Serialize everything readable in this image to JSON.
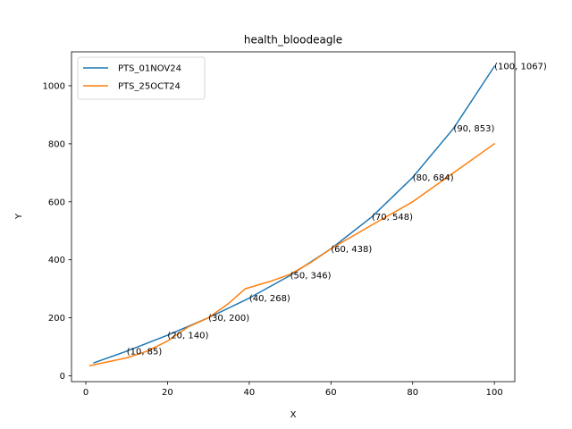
{
  "chart_data": {
    "type": "line",
    "title": "health_bloodeagle",
    "xlabel": "X",
    "ylabel": "Y",
    "xlim": [
      -3.5,
      105
    ],
    "ylim": [
      -20,
      1117
    ],
    "xticks": [
      0,
      20,
      40,
      60,
      80,
      100
    ],
    "yticks": [
      0,
      200,
      400,
      600,
      800,
      1000
    ],
    "grid": false,
    "legend_position": "top-left",
    "series": [
      {
        "name": "PTS_01NOV24",
        "color": "#1f77b4",
        "x": [
          2,
          10,
          20,
          30,
          40,
          50,
          60,
          70,
          80,
          90,
          100
        ],
        "y": [
          45,
          85,
          140,
          200,
          268,
          346,
          438,
          548,
          684,
          853,
          1067
        ]
      },
      {
        "name": "PTS_25OCT24",
        "color": "#ff7f0e",
        "x": [
          1,
          10,
          15,
          20,
          25,
          30,
          35,
          39,
          45,
          50,
          55,
          60,
          70,
          80,
          90,
          100
        ],
        "y": [
          35,
          62,
          85,
          120,
          168,
          200,
          250,
          300,
          325,
          350,
          390,
          438,
          520,
          600,
          700,
          800
        ]
      }
    ],
    "annotations": [
      {
        "x": 10,
        "y": 85,
        "text": "(10, 85)"
      },
      {
        "x": 20,
        "y": 140,
        "text": "(20, 140)"
      },
      {
        "x": 30,
        "y": 200,
        "text": "(30, 200)"
      },
      {
        "x": 40,
        "y": 268,
        "text": "(40, 268)"
      },
      {
        "x": 50,
        "y": 346,
        "text": "(50, 346)"
      },
      {
        "x": 60,
        "y": 438,
        "text": "(60, 438)"
      },
      {
        "x": 70,
        "y": 548,
        "text": "(70, 548)"
      },
      {
        "x": 80,
        "y": 684,
        "text": "(80, 684)"
      },
      {
        "x": 90,
        "y": 853,
        "text": "(90, 853)"
      },
      {
        "x": 100,
        "y": 1067,
        "text": "(100, 1067)"
      }
    ]
  }
}
